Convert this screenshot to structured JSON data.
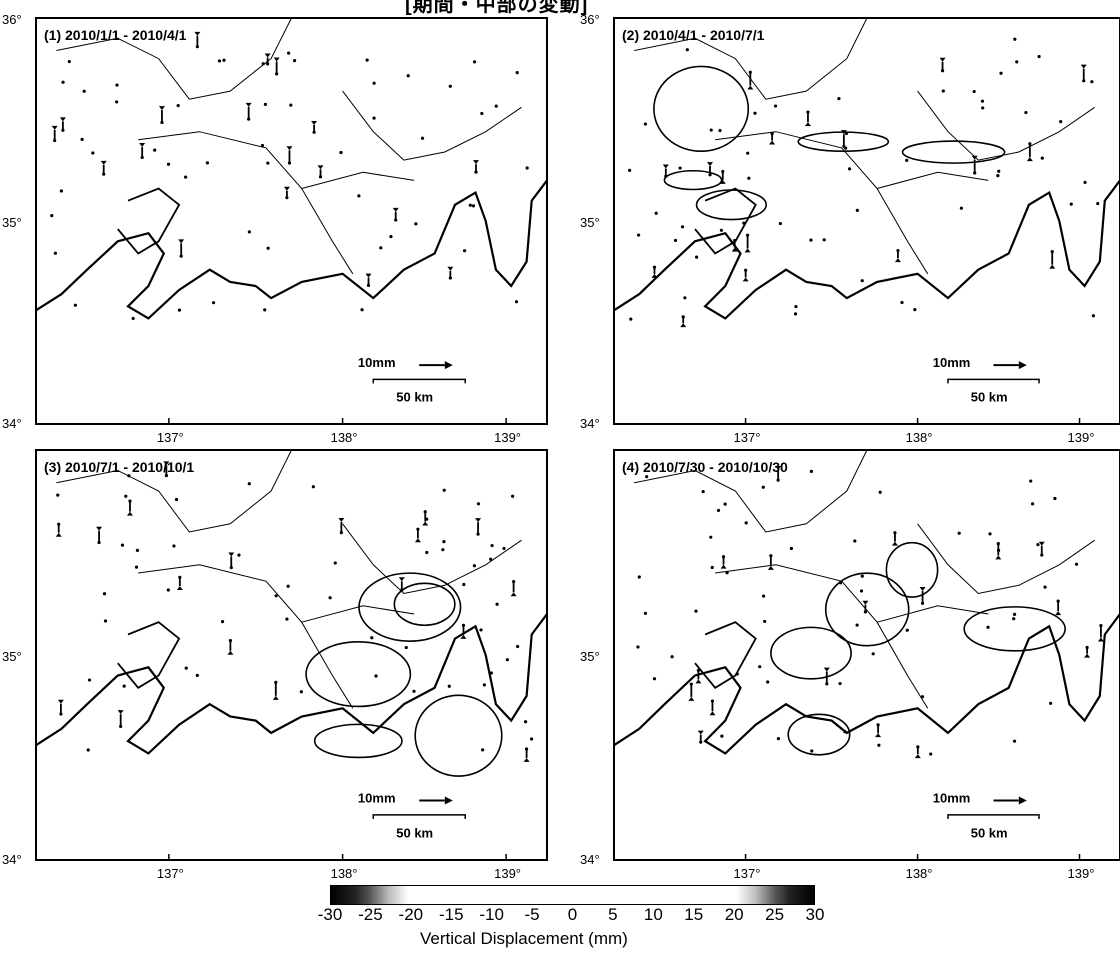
{
  "top_title": "[期間・中部の変動]",
  "panels": [
    {
      "id": 1,
      "label": "(1) 2010/1/1 - 2010/4/1"
    },
    {
      "id": 2,
      "label": "(2) 2010/4/1 - 2010/7/1"
    },
    {
      "id": 3,
      "label": "(3) 2010/7/1 - 2010/10/1"
    },
    {
      "id": 4,
      "label": "(4) 2010/7/30 - 2010/10/30"
    }
  ],
  "axes": {
    "lon_ticks": [
      "137°",
      "138°",
      "139°"
    ],
    "lat_ticks": [
      "36°",
      "35°",
      "34°"
    ]
  },
  "scale": {
    "vector": "10mm",
    "distance": "50 km"
  },
  "colorbar": {
    "ticks": [
      "-30",
      "-25",
      "-20",
      "-15",
      "-10",
      "-5",
      "0",
      "5",
      "10",
      "15",
      "20",
      "25",
      "30"
    ],
    "label": "Vertical Displacement (mm)"
  }
}
